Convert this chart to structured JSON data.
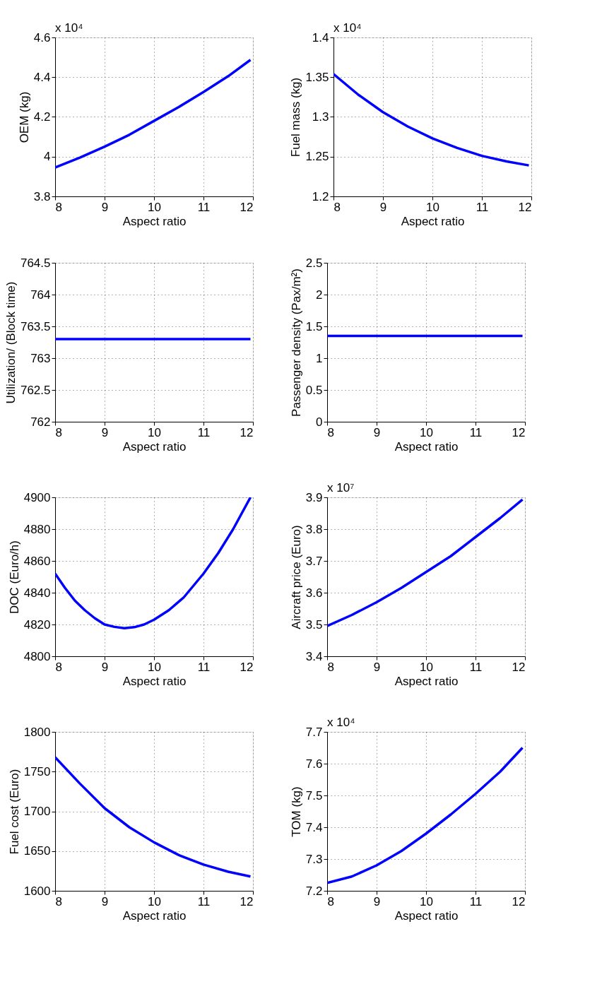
{
  "chart_data": [
    {
      "type": "line",
      "xlabel": "Aspect ratio",
      "ylabel": "OEM (kg)",
      "annotations": [
        "x 10⁴"
      ],
      "x": [
        8,
        8.5,
        9,
        9.5,
        10,
        10.5,
        11,
        11.5,
        11.95
      ],
      "series": [
        {
          "color": "#0000ff",
          "values": [
            3.945,
            3.995,
            4.05,
            4.11,
            4.18,
            4.25,
            4.325,
            4.405,
            4.487
          ]
        }
      ],
      "xlim": [
        8,
        12
      ],
      "xticks": [
        8,
        9,
        10,
        11,
        12
      ],
      "ylim": [
        3.8,
        4.6
      ],
      "yticks": [
        3.8,
        4,
        4.2,
        4.4,
        4.6
      ],
      "grid": true
    },
    {
      "type": "line",
      "xlabel": "Aspect ratio",
      "ylabel": "Fuel mass (kg)",
      "annotations": [
        "x 10⁴"
      ],
      "x": [
        8,
        8.5,
        9,
        9.5,
        10,
        10.5,
        11,
        11.5,
        11.95
      ],
      "series": [
        {
          "color": "#0000ff",
          "values": [
            1.354,
            1.328,
            1.306,
            1.288,
            1.273,
            1.261,
            1.251,
            1.244,
            1.239
          ]
        }
      ],
      "xlim": [
        8,
        12
      ],
      "xticks": [
        8,
        9,
        10,
        11,
        12
      ],
      "ylim": [
        1.2,
        1.4
      ],
      "yticks": [
        1.2,
        1.25,
        1.3,
        1.35,
        1.4
      ],
      "grid": true
    },
    {
      "type": "line",
      "xlabel": "Aspect ratio",
      "ylabel": "Utilization/ (Block time)",
      "x": [
        8,
        11.95
      ],
      "series": [
        {
          "color": "#0000ff",
          "values": [
            763.3,
            763.3
          ]
        }
      ],
      "xlim": [
        8,
        12
      ],
      "xticks": [
        8,
        9,
        10,
        11,
        12
      ],
      "ylim": [
        762,
        764.5
      ],
      "yticks": [
        762,
        762.5,
        763,
        763.5,
        764,
        764.5
      ],
      "grid": true
    },
    {
      "type": "line",
      "xlabel": "Aspect ratio",
      "ylabel": "Passenger density (Pax/m²)",
      "x": [
        8,
        11.95
      ],
      "series": [
        {
          "color": "#0000ff",
          "values": [
            1.35,
            1.35
          ]
        }
      ],
      "xlim": [
        8,
        12
      ],
      "xticks": [
        8,
        9,
        10,
        11,
        12
      ],
      "ylim": [
        0,
        2.5
      ],
      "yticks": [
        0,
        0.5,
        1,
        1.5,
        2,
        2.5
      ],
      "grid": true
    },
    {
      "type": "line",
      "xlabel": "Aspect ratio",
      "ylabel": "DOC (Euro/h)",
      "x": [
        8,
        8.2,
        8.4,
        8.6,
        8.8,
        9,
        9.2,
        9.4,
        9.6,
        9.8,
        10,
        10.3,
        10.6,
        11,
        11.3,
        11.6,
        11.95
      ],
      "series": [
        {
          "color": "#0000ff",
          "values": [
            4852,
            4843,
            4835,
            4829,
            4824,
            4820,
            4818.5,
            4817.7,
            4818.3,
            4820,
            4823,
            4829,
            4837,
            4852,
            4865,
            4880,
            4900
          ]
        }
      ],
      "xlim": [
        8,
        12
      ],
      "xticks": [
        8,
        9,
        10,
        11,
        12
      ],
      "ylim": [
        4800,
        4900
      ],
      "yticks": [
        4800,
        4820,
        4840,
        4860,
        4880,
        4900
      ],
      "grid": true
    },
    {
      "type": "line",
      "xlabel": "Aspect ratio",
      "ylabel": "Aircraft price (Euro)",
      "annotations": [
        "x 10⁷"
      ],
      "x": [
        8,
        8.5,
        9,
        9.5,
        10,
        10.5,
        11,
        11.5,
        11.95
      ],
      "series": [
        {
          "color": "#0000ff",
          "values": [
            3.495,
            3.53,
            3.57,
            3.615,
            3.665,
            3.715,
            3.775,
            3.835,
            3.893
          ]
        }
      ],
      "xlim": [
        8,
        12
      ],
      "xticks": [
        8,
        9,
        10,
        11,
        12
      ],
      "ylim": [
        3.4,
        3.9
      ],
      "yticks": [
        3.4,
        3.5,
        3.6,
        3.7,
        3.8,
        3.9
      ],
      "grid": true
    },
    {
      "type": "line",
      "xlabel": "Aspect ratio",
      "ylabel": "Fuel cost (Euro)",
      "x": [
        8,
        8.5,
        9,
        9.5,
        10,
        10.5,
        11,
        11.5,
        11.95
      ],
      "series": [
        {
          "color": "#0000ff",
          "values": [
            1768,
            1735,
            1704,
            1680,
            1661,
            1645,
            1633,
            1624,
            1618
          ]
        }
      ],
      "xlim": [
        8,
        12
      ],
      "xticks": [
        8,
        9,
        10,
        11,
        12
      ],
      "ylim": [
        1600,
        1800
      ],
      "yticks": [
        1600,
        1650,
        1700,
        1750,
        1800
      ],
      "grid": true
    },
    {
      "type": "line",
      "xlabel": "Aspect ratio",
      "ylabel": "TOM (kg)",
      "annotations": [
        "x 10⁴"
      ],
      "x": [
        8,
        8.5,
        9,
        9.5,
        10,
        10.5,
        11,
        11.5,
        11.95
      ],
      "series": [
        {
          "color": "#0000ff",
          "values": [
            7.225,
            7.245,
            7.28,
            7.325,
            7.38,
            7.44,
            7.505,
            7.575,
            7.65
          ]
        }
      ],
      "xlim": [
        8,
        12
      ],
      "xticks": [
        8,
        9,
        10,
        11,
        12
      ],
      "ylim": [
        7.2,
        7.7
      ],
      "yticks": [
        7.2,
        7.3,
        7.4,
        7.5,
        7.6,
        7.7
      ],
      "grid": true
    }
  ]
}
